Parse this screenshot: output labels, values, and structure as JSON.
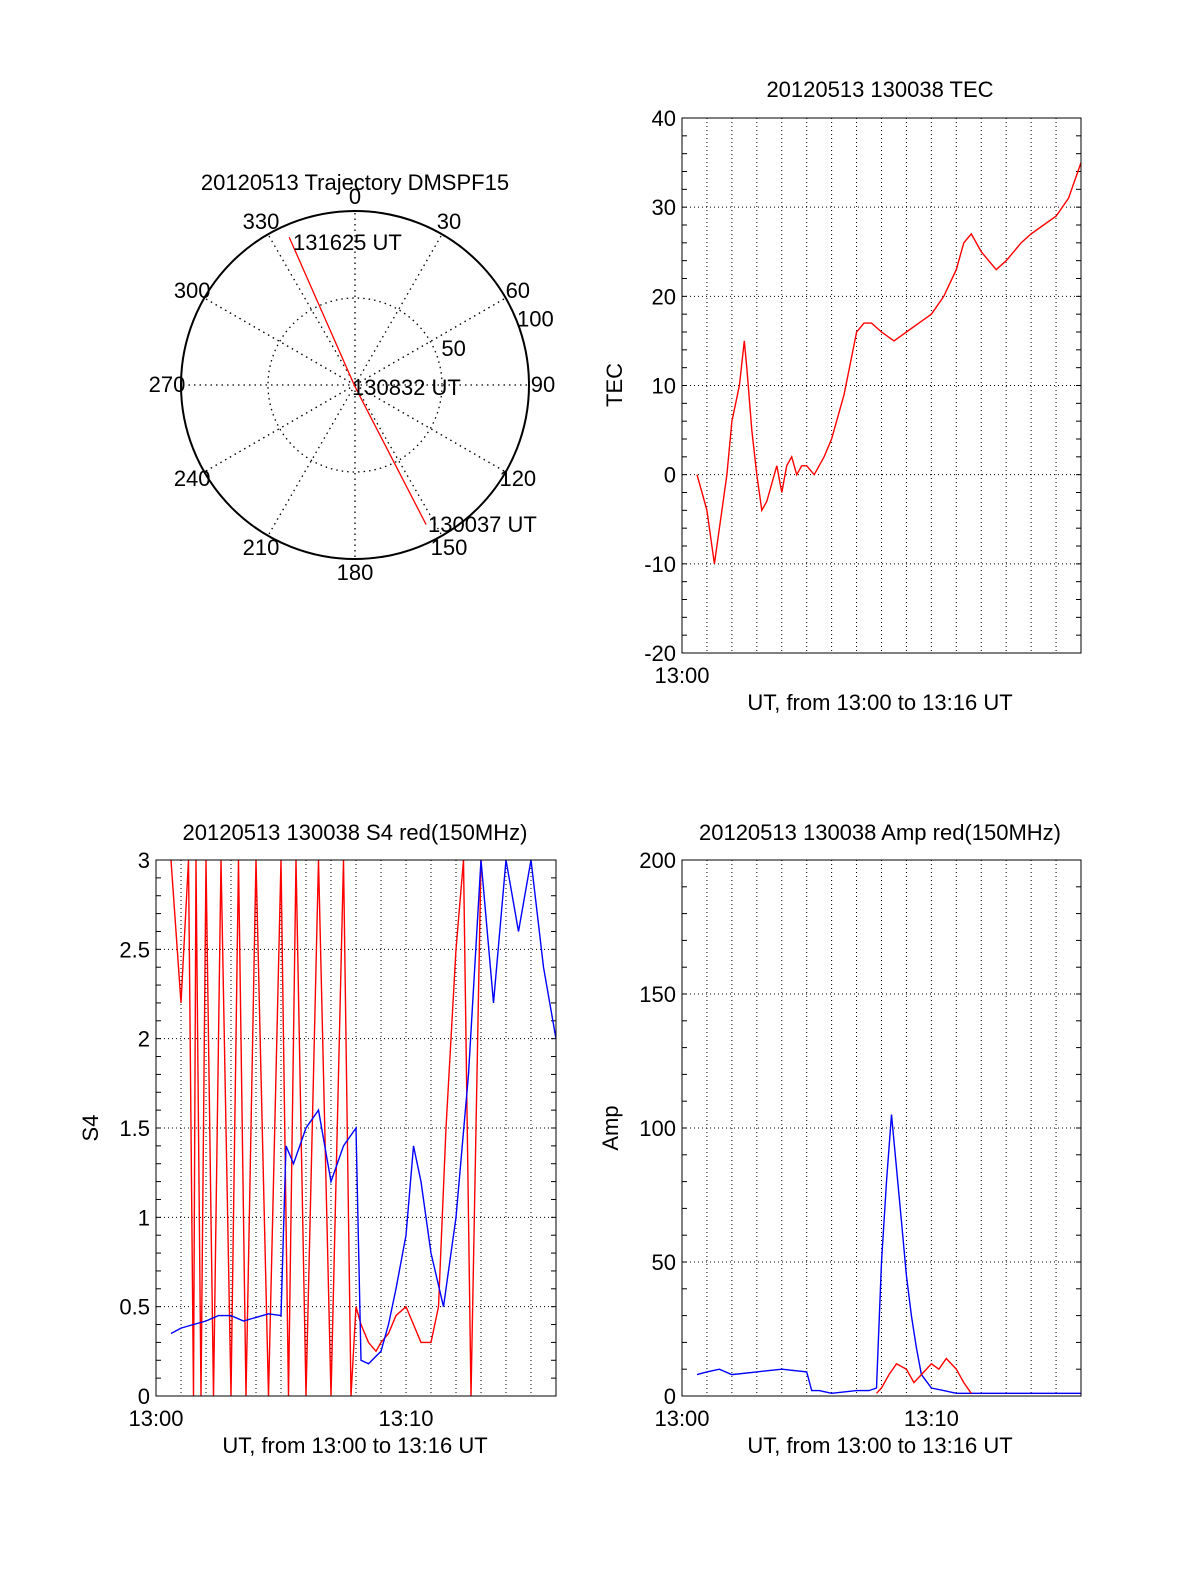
{
  "chart_data": [
    {
      "type": "polar",
      "title": "20120513 Trajectory DMSPF15",
      "angle_labels": [
        "0",
        "30",
        "60",
        "90",
        "120",
        "150",
        "180",
        "210",
        "240",
        "270",
        "300",
        "330"
      ],
      "radius_labels": [
        "50",
        "100"
      ],
      "radius_max": 100,
      "series": [
        {
          "color": "#ff0000",
          "points": [
            {
              "azimuth": 153,
              "radius": 90
            },
            {
              "azimuth": 180,
              "radius": 1
            },
            {
              "azimuth": 336,
              "radius": 93
            }
          ]
        }
      ],
      "annotations": [
        "131625 UT",
        "130832 UT",
        "130037 UT"
      ]
    },
    {
      "type": "line",
      "title": "20120513 130038 TEC",
      "xlabel": "UT, from 13:00 to 13:16 UT",
      "ylabel": "TEC",
      "xlim": [
        0,
        16
      ],
      "ylim": [
        -20,
        40
      ],
      "x_tick_labels": [
        {
          "x": 0,
          "label": "13:00"
        }
      ],
      "y_ticks": [
        -20,
        -10,
        0,
        10,
        20,
        30,
        40
      ],
      "grid": true,
      "series": [
        {
          "color": "#ff0000",
          "x": [
            0.6,
            0.8,
            1.0,
            1.3,
            1.5,
            1.8,
            2.0,
            2.3,
            2.5,
            2.6,
            2.8,
            3.0,
            3.2,
            3.4,
            3.6,
            3.8,
            4.0,
            4.2,
            4.4,
            4.6,
            4.8,
            5.0,
            5.3,
            5.7,
            6.0,
            6.5,
            7.0,
            7.3,
            7.6,
            8.0,
            8.5,
            9.0,
            9.5,
            10.0,
            10.5,
            11.0,
            11.3,
            11.6,
            12.0,
            12.3,
            12.6,
            13.0,
            13.3,
            13.6,
            14.0,
            14.5,
            15.0,
            15.5,
            16.0
          ],
          "y": [
            0,
            -2,
            -4,
            -10,
            -6,
            0,
            6,
            10,
            15,
            12,
            5,
            0,
            -4,
            -3,
            -1,
            1,
            -2,
            1,
            2,
            0,
            1,
            1,
            0,
            2,
            4,
            9,
            16,
            17,
            17,
            16,
            15,
            16,
            17,
            18,
            20,
            23,
            26,
            27,
            25,
            24,
            23,
            24,
            25,
            26,
            27,
            28,
            29,
            31,
            35
          ]
        }
      ]
    },
    {
      "type": "line",
      "title": "20120513 130038 S4 red(150MHz)",
      "xlabel": "UT, from 13:00 to 13:16 UT",
      "ylabel": "S4",
      "xlim": [
        0,
        16
      ],
      "ylim": [
        0,
        3
      ],
      "x_tick_labels": [
        {
          "x": 0,
          "label": "13:00"
        },
        {
          "x": 10,
          "label": "13:10"
        }
      ],
      "y_ticks": [
        0,
        0.5,
        1,
        1.5,
        2,
        2.5,
        3
      ],
      "y_tick_labels": [
        "0",
        "0.5",
        "1",
        "1.5",
        "2",
        "2.5",
        "3"
      ],
      "grid": true,
      "series": [
        {
          "color": "#ff0000",
          "x": [
            0.6,
            0.8,
            1.0,
            1.3,
            1.5,
            1.6,
            1.8,
            2.0,
            2.3,
            2.6,
            3.0,
            3.3,
            3.6,
            4.0,
            4.5,
            5.0,
            5.3,
            5.6,
            6.0,
            6.5,
            7.0,
            7.5,
            7.8,
            8.0,
            8.2,
            8.5,
            8.8,
            9.0,
            9.3,
            9.6,
            10.0,
            10.3,
            10.6,
            11.0,
            11.3,
            11.6,
            12.0,
            12.3,
            12.6,
            13.0
          ],
          "y": [
            3.0,
            2.6,
            2.2,
            3.0,
            0.0,
            3.0,
            0.0,
            3.0,
            0.0,
            3.0,
            0.0,
            3.0,
            0.0,
            3.0,
            0.0,
            3.0,
            0.0,
            3.0,
            0.0,
            3.0,
            0.0,
            3.0,
            0.0,
            0.5,
            0.4,
            0.3,
            0.25,
            0.3,
            0.35,
            0.45,
            0.5,
            0.4,
            0.3,
            0.3,
            0.5,
            1.5,
            2.5,
            3.0,
            0.0,
            3.0
          ]
        },
        {
          "color": "#0000ff",
          "x": [
            0.6,
            1.0,
            1.5,
            2.0,
            2.5,
            3.0,
            3.5,
            4.0,
            4.5,
            5.0,
            5.2,
            5.5,
            6.0,
            6.5,
            7.0,
            7.5,
            8.0,
            8.2,
            8.5,
            9.0,
            9.3,
            9.6,
            10.0,
            10.3,
            10.6,
            11.0,
            11.5,
            12.0,
            12.5,
            13.0,
            13.5,
            14.0,
            14.5,
            15.0,
            15.5,
            16.0
          ],
          "y": [
            0.35,
            0.38,
            0.4,
            0.42,
            0.45,
            0.45,
            0.42,
            0.44,
            0.46,
            0.45,
            1.4,
            1.3,
            1.5,
            1.6,
            1.2,
            1.4,
            1.5,
            0.2,
            0.18,
            0.25,
            0.4,
            0.6,
            0.9,
            1.4,
            1.2,
            0.8,
            0.5,
            1.0,
            1.8,
            3.0,
            2.2,
            3.0,
            2.6,
            3.0,
            2.4,
            2.0
          ]
        }
      ]
    },
    {
      "type": "line",
      "title": "20120513 130038 Amp red(150MHz)",
      "xlabel": "UT, from 13:00 to 13:16 UT",
      "ylabel": "Amp",
      "xlim": [
        0,
        16
      ],
      "ylim": [
        0,
        200
      ],
      "x_tick_labels": [
        {
          "x": 0,
          "label": "13:00"
        },
        {
          "x": 10,
          "label": "13:10"
        }
      ],
      "y_ticks": [
        0,
        50,
        100,
        150,
        200
      ],
      "grid": true,
      "series": [
        {
          "color": "#0000ff",
          "x": [
            0.6,
            1.0,
            1.5,
            2.0,
            3.0,
            4.0,
            5.0,
            5.2,
            5.5,
            6.0,
            7.0,
            7.5,
            7.8,
            8.0,
            8.2,
            8.4,
            8.6,
            8.8,
            9.0,
            9.2,
            9.4,
            9.6,
            10.0,
            10.5,
            11.0,
            12.0,
            13.0,
            14.0,
            15.0,
            16.0
          ],
          "y": [
            8,
            9,
            10,
            8,
            9,
            10,
            9,
            2,
            2,
            1,
            2,
            2,
            3,
            50,
            80,
            105,
            85,
            65,
            45,
            30,
            18,
            8,
            3,
            2,
            1,
            1,
            1,
            1,
            1,
            1
          ]
        },
        {
          "color": "#ff0000",
          "x": [
            7.8,
            8.0,
            8.3,
            8.6,
            9.0,
            9.3,
            9.6,
            10.0,
            10.3,
            10.6,
            11.0,
            11.3,
            11.6
          ],
          "y": [
            1,
            3,
            8,
            12,
            10,
            5,
            8,
            12,
            10,
            14,
            10,
            5,
            1
          ]
        }
      ]
    }
  ]
}
